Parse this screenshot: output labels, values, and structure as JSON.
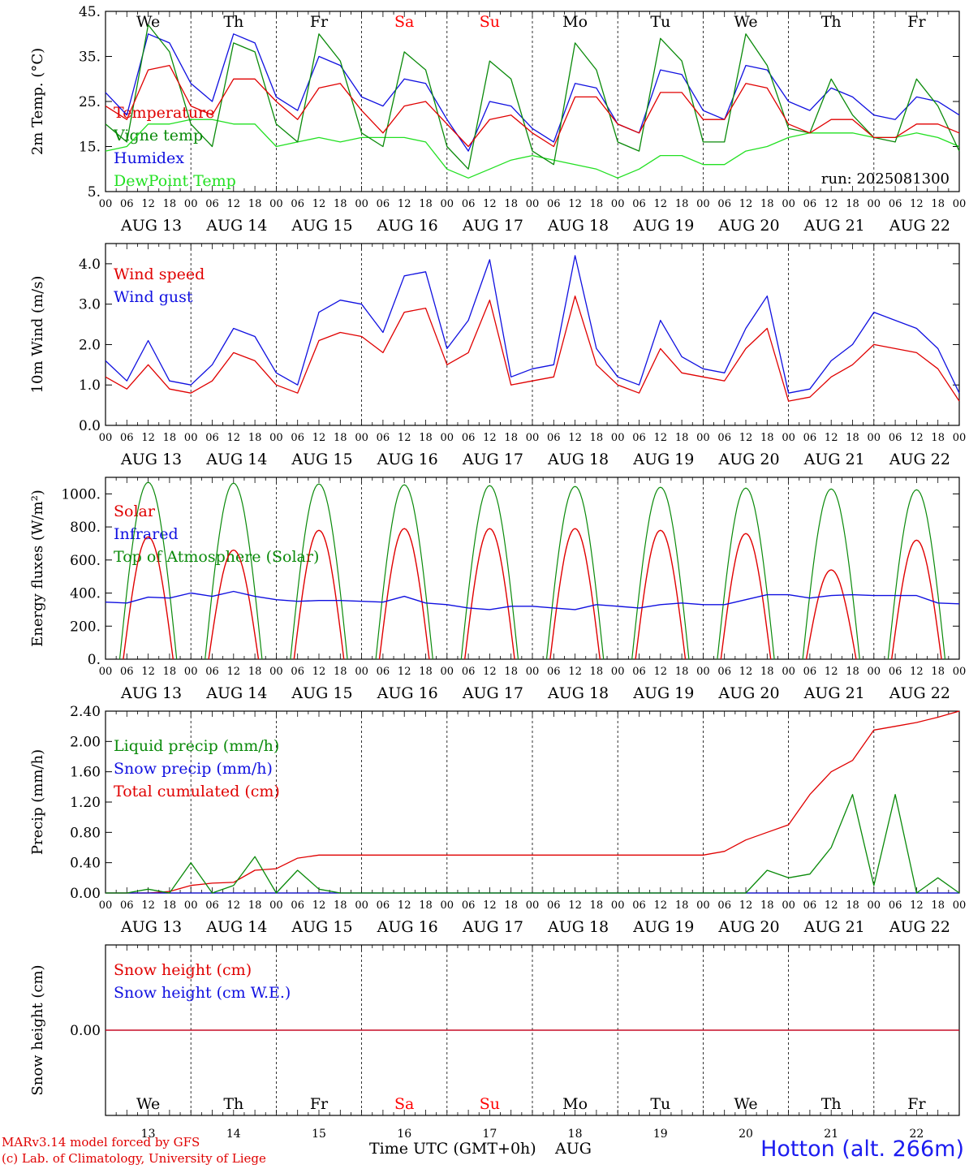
{
  "colors": {
    "red": "#e00000",
    "darkgreen": "#0a8a0a",
    "blue": "#1010e0",
    "lightgreen": "#22e022",
    "black": "#000000",
    "weekend": "#ff0000"
  },
  "footer": {
    "model_line1": "MARv3.14 model forced by GFS",
    "model_line2": "(c) Lab. of Climatology, University of Liege",
    "xlabel": "Time UTC (GMT+0h)",
    "month": "AUG",
    "station": "Hotton (alt. 266m)"
  },
  "chart_data": [
    {
      "type": "line",
      "ylabel": "2m Temp. (°C)",
      "ylim": [
        5,
        45
      ],
      "yticks": [
        "5.",
        "15.",
        "25.",
        "35.",
        "45."
      ],
      "ytick_values": [
        5,
        15,
        25,
        35,
        45
      ],
      "top_day_labels": [
        {
          "text": "We",
          "weekend": false
        },
        {
          "text": "Th",
          "weekend": false
        },
        {
          "text": "Fr",
          "weekend": false
        },
        {
          "text": "Sa",
          "weekend": true
        },
        {
          "text": "Su",
          "weekend": true
        },
        {
          "text": "Mo",
          "weekend": false
        },
        {
          "text": "Tu",
          "weekend": false
        },
        {
          "text": "We",
          "weekend": false
        },
        {
          "text": "Th",
          "weekend": false
        },
        {
          "text": "Fr",
          "weekend": false
        }
      ],
      "annotation": "run: 2025081300",
      "x_hours": [
        0,
        6,
        12,
        18,
        24,
        30,
        36,
        42,
        48,
        54,
        60,
        66,
        72,
        78,
        84,
        90,
        96,
        102,
        108,
        114,
        120,
        126,
        132,
        138,
        144,
        150,
        156,
        162,
        168,
        174,
        180,
        186,
        192,
        198,
        204,
        210,
        216,
        222,
        228,
        234,
        240
      ],
      "series": [
        {
          "name": "Temperature",
          "color": "red",
          "values": [
            24,
            21,
            32,
            33,
            24,
            22,
            30,
            30,
            25,
            21,
            28,
            29,
            23,
            18,
            24,
            25,
            20,
            15,
            21,
            22,
            18,
            15,
            26,
            26,
            20,
            18,
            27,
            27,
            21,
            21,
            29,
            28,
            20,
            18,
            21,
            21,
            17,
            17,
            20,
            20,
            18
          ]
        },
        {
          "name": "Vigne temp",
          "color": "darkgreen",
          "values": [
            20,
            16,
            42,
            36,
            20,
            15,
            38,
            36,
            20,
            16,
            40,
            34,
            18,
            15,
            36,
            32,
            15,
            10,
            34,
            30,
            14,
            11,
            38,
            32,
            16,
            14,
            39,
            34,
            16,
            16,
            40,
            33,
            19,
            18,
            30,
            22,
            17,
            16,
            30,
            24,
            14
          ]
        },
        {
          "name": "Humidex",
          "color": "blue",
          "values": [
            27,
            22,
            40,
            38,
            29,
            25,
            40,
            38,
            26,
            23,
            35,
            33,
            26,
            24,
            30,
            29,
            21,
            14,
            25,
            24,
            19,
            16,
            29,
            28,
            20,
            18,
            32,
            31,
            23,
            21,
            33,
            32,
            25,
            23,
            28,
            26,
            22,
            21,
            26,
            25,
            22
          ]
        },
        {
          "name": "DewPoint Temp",
          "color": "lightgreen",
          "values": [
            14,
            15,
            20,
            20,
            21,
            21,
            20,
            20,
            15,
            16,
            17,
            16,
            17,
            17,
            17,
            16,
            10,
            8,
            10,
            12,
            13,
            12,
            11,
            10,
            8,
            10,
            13,
            13,
            11,
            11,
            14,
            15,
            17,
            18,
            18,
            18,
            17,
            17,
            18,
            17,
            15
          ]
        }
      ]
    },
    {
      "type": "line",
      "ylabel": "10m Wind (m/s)",
      "ylim": [
        0,
        4.5
      ],
      "yticks": [
        "0.0",
        "1.0",
        "2.0",
        "3.0",
        "4.0"
      ],
      "ytick_values": [
        0,
        1,
        2,
        3,
        4
      ],
      "x_hours": [
        0,
        6,
        12,
        18,
        24,
        30,
        36,
        42,
        48,
        54,
        60,
        66,
        72,
        78,
        84,
        90,
        96,
        102,
        108,
        114,
        120,
        126,
        132,
        138,
        144,
        150,
        156,
        162,
        168,
        174,
        180,
        186,
        192,
        198,
        204,
        210,
        216,
        222,
        228,
        234,
        240
      ],
      "series": [
        {
          "name": "Wind speed",
          "color": "red",
          "values": [
            1.2,
            0.9,
            1.5,
            0.9,
            0.8,
            1.1,
            1.8,
            1.6,
            1.0,
            0.8,
            2.1,
            2.3,
            2.2,
            1.8,
            2.8,
            2.9,
            1.5,
            1.8,
            3.1,
            1.0,
            1.1,
            1.2,
            3.2,
            1.5,
            1.0,
            0.8,
            1.9,
            1.3,
            1.2,
            1.1,
            1.9,
            2.4,
            0.6,
            0.7,
            1.2,
            1.5,
            2.0,
            1.9,
            1.8,
            1.4,
            0.6
          ]
        },
        {
          "name": "Wind gust",
          "color": "blue",
          "values": [
            1.6,
            1.1,
            2.1,
            1.1,
            1.0,
            1.5,
            2.4,
            2.2,
            1.3,
            1.0,
            2.8,
            3.1,
            3.0,
            2.3,
            3.7,
            3.8,
            1.9,
            2.6,
            4.1,
            1.2,
            1.4,
            1.5,
            4.2,
            1.9,
            1.2,
            1.0,
            2.6,
            1.7,
            1.4,
            1.3,
            2.4,
            3.2,
            0.8,
            0.9,
            1.6,
            2.0,
            2.8,
            2.6,
            2.4,
            1.9,
            0.8
          ]
        }
      ]
    },
    {
      "type": "line",
      "ylabel": "Energy fluxes (W/m²)",
      "ylim": [
        0,
        1100
      ],
      "yticks": [
        "0.",
        "200.",
        "400.",
        "600.",
        "800.",
        "1000."
      ],
      "ytick_values": [
        0,
        200,
        400,
        600,
        800,
        1000
      ],
      "toa_peak_values": [
        1070,
        1065,
        1060,
        1055,
        1050,
        1045,
        1040,
        1035,
        1030,
        1025
      ],
      "solar_peak_values": [
        740,
        660,
        780,
        790,
        790,
        790,
        780,
        760,
        540,
        720
      ],
      "x_hours": [
        0,
        6,
        12,
        18,
        24,
        30,
        36,
        42,
        48,
        54,
        60,
        66,
        72,
        78,
        84,
        90,
        96,
        102,
        108,
        114,
        120,
        126,
        132,
        138,
        144,
        150,
        156,
        162,
        168,
        174,
        180,
        186,
        192,
        198,
        204,
        210,
        216,
        222,
        228,
        234,
        240
      ],
      "infrared_values": [
        345,
        340,
        375,
        370,
        400,
        380,
        410,
        380,
        360,
        350,
        355,
        355,
        350,
        345,
        380,
        340,
        330,
        310,
        300,
        320,
        320,
        310,
        300,
        330,
        320,
        310,
        330,
        340,
        330,
        330,
        360,
        390,
        390,
        370,
        385,
        390,
        385,
        385,
        385,
        340,
        335
      ],
      "series": [
        {
          "name": "Solar",
          "color": "red"
        },
        {
          "name": "Infrared",
          "color": "blue"
        },
        {
          "name": "Top of Atmosphere (Solar)",
          "color": "darkgreen"
        }
      ]
    },
    {
      "type": "line",
      "ylabel": "Precip (mm/h)",
      "ylim": [
        0,
        2.4
      ],
      "yticks": [
        "0.00",
        "0.40",
        "0.80",
        "1.20",
        "1.60",
        "2.00",
        "2.40"
      ],
      "ytick_values": [
        0,
        0.4,
        0.8,
        1.2,
        1.6,
        2.0,
        2.4
      ],
      "x_hours": [
        0,
        6,
        12,
        18,
        24,
        30,
        36,
        42,
        48,
        54,
        60,
        66,
        72,
        78,
        84,
        90,
        96,
        102,
        108,
        114,
        120,
        126,
        132,
        138,
        144,
        150,
        156,
        162,
        168,
        174,
        180,
        186,
        192,
        198,
        204,
        210,
        216,
        222,
        228,
        234,
        240
      ],
      "series": [
        {
          "name": "Liquid precip (mm/h)",
          "color": "darkgreen",
          "values": [
            0,
            0,
            0.05,
            0,
            0.4,
            0,
            0.1,
            0.48,
            0,
            0.3,
            0.05,
            0,
            0,
            0,
            0,
            0,
            0,
            0,
            0,
            0,
            0,
            0,
            0,
            0,
            0,
            0,
            0,
            0,
            0,
            0,
            0,
            0.3,
            0.2,
            0.25,
            0.6,
            1.3,
            0.1,
            1.3,
            0,
            0.2,
            0
          ]
        },
        {
          "name": "Snow precip (mm/h)",
          "color": "blue",
          "values": [
            0,
            0,
            0,
            0,
            0,
            0,
            0,
            0,
            0,
            0,
            0,
            0,
            0,
            0,
            0,
            0,
            0,
            0,
            0,
            0,
            0,
            0,
            0,
            0,
            0,
            0,
            0,
            0,
            0,
            0,
            0,
            0,
            0,
            0,
            0,
            0,
            0,
            0,
            0,
            0,
            0
          ]
        },
        {
          "name": "Total cumulated (cm)",
          "color": "red",
          "values": [
            0,
            0,
            0,
            0.02,
            0.1,
            0.13,
            0.14,
            0.3,
            0.32,
            0.46,
            0.5,
            0.5,
            0.5,
            0.5,
            0.5,
            0.5,
            0.5,
            0.5,
            0.5,
            0.5,
            0.5,
            0.5,
            0.5,
            0.5,
            0.5,
            0.5,
            0.5,
            0.5,
            0.5,
            0.55,
            0.7,
            0.8,
            0.9,
            1.3,
            1.6,
            1.75,
            2.15,
            2.2,
            2.25,
            2.32,
            2.4
          ]
        }
      ]
    },
    {
      "type": "line",
      "ylabel": "Snow height (cm)",
      "ylim": [
        -1,
        1
      ],
      "yticks": [
        "0.00"
      ],
      "ytick_values": [
        0
      ],
      "bottom_day_labels": [
        {
          "text": "We",
          "weekend": false,
          "date": "13"
        },
        {
          "text": "Th",
          "weekend": false,
          "date": "14"
        },
        {
          "text": "Fr",
          "weekend": false,
          "date": "15"
        },
        {
          "text": "Sa",
          "weekend": true,
          "date": "16"
        },
        {
          "text": "Su",
          "weekend": true,
          "date": "17"
        },
        {
          "text": "Mo",
          "weekend": false,
          "date": "18"
        },
        {
          "text": "Tu",
          "weekend": false,
          "date": "19"
        },
        {
          "text": "We",
          "weekend": false,
          "date": "20"
        },
        {
          "text": "Th",
          "weekend": false,
          "date": "21"
        },
        {
          "text": "Fr",
          "weekend": false,
          "date": "22"
        }
      ],
      "series": [
        {
          "name": "Snow height (cm)",
          "color": "red",
          "values": [
            0,
            0
          ]
        },
        {
          "name": "Snow height (cm W.E.)",
          "color": "blue",
          "values": [
            0,
            0
          ]
        }
      ]
    }
  ],
  "x_axis": {
    "hour_labels": [
      "00",
      "06",
      "12",
      "18"
    ],
    "end_label": "00",
    "date_labels": [
      "AUG 13",
      "AUG 14",
      "AUG 15",
      "AUG 16",
      "AUG 17",
      "AUG 18",
      "AUG 19",
      "AUG 20",
      "AUG 21",
      "AUG 22"
    ]
  }
}
